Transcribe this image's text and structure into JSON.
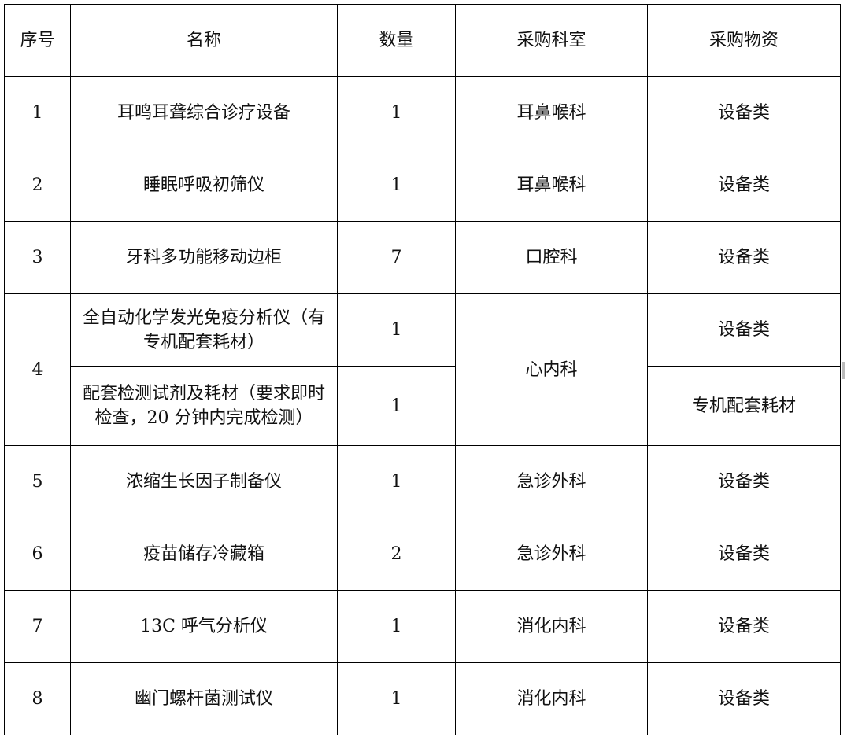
{
  "headers": [
    "序号",
    "名称",
    "数量",
    "采购科室",
    "采购物资"
  ],
  "rows": [
    {
      "no": "1",
      "name": "耳鸣耳聋综合诊疗设备",
      "qty": "1",
      "dept": "耳鼻喉科",
      "type": "设备类"
    },
    {
      "no": "2",
      "name": "睡眠呼吸初筛仪",
      "qty": "1",
      "dept": "耳鼻喉科",
      "type": "设备类"
    },
    {
      "no": "3",
      "name": "牙科多功能移动边柜",
      "qty": "7",
      "dept": "口腔科",
      "type": "设备类"
    },
    {
      "no": "4",
      "dept": "心内科",
      "items": [
        {
          "name": "全自动化学发光免疫分析仪（有专机配套耗材）",
          "qty": "1",
          "type": "设备类"
        },
        {
          "name": "配套检测试剂及耗材（要求即时检查，20 分钟内完成检测）",
          "qty": "1",
          "type": "专机配套耗材"
        }
      ]
    },
    {
      "no": "5",
      "name": "浓缩生长因子制备仪",
      "qty": "1",
      "dept": "急诊外科",
      "type": "设备类"
    },
    {
      "no": "6",
      "name": "疫苗储存冷藏箱",
      "qty": "2",
      "dept": "急诊外科",
      "type": "设备类"
    },
    {
      "no": "7",
      "name": "13C 呼气分析仪",
      "qty": "1",
      "dept": "消化内科",
      "type": "设备类"
    },
    {
      "no": "8",
      "name": "幽门螺杆菌测试仪",
      "qty": "1",
      "dept": "消化内科",
      "type": "设备类"
    }
  ]
}
